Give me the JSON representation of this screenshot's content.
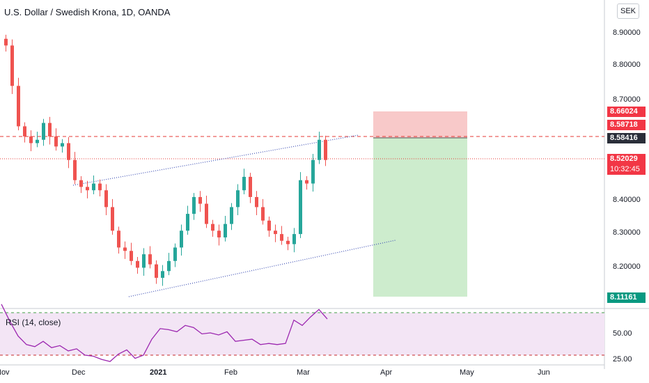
{
  "title": "U.S. Dollar / Swedish Krona, 1D, OANDA",
  "currency": "SEK",
  "price_axis": {
    "ticks": [
      "8.90000",
      "8.80000",
      "8.70000",
      "8.40000",
      "8.30000",
      "8.20000"
    ],
    "values": [
      8.9,
      8.8,
      8.7,
      8.4,
      8.3,
      8.2
    ]
  },
  "price_tags": {
    "tp_label": "8.66024",
    "entry_label": "8.58718",
    "dark_label": "8.58416",
    "last_price": "8.52029",
    "countdown": "10:32:45",
    "stop_label": "8.11161"
  },
  "levels": {
    "stop": 8.66024,
    "entry": 8.58718,
    "target": 8.11161,
    "last": 8.52029
  },
  "time_axis": [
    "Nov",
    "Dec",
    "2021",
    "Feb",
    "Mar",
    "Apr",
    "May",
    "Jun"
  ],
  "rsi": {
    "label": "RSI (14, close)",
    "ticks": [
      "50.00",
      "25.00"
    ],
    "upper": 70,
    "lower": 30,
    "values": [
      78,
      62,
      48,
      40,
      38,
      43,
      37,
      39,
      34,
      36,
      30,
      29,
      26,
      24,
      31,
      35,
      27,
      30,
      45,
      55,
      54,
      52,
      58,
      56,
      50,
      51,
      49,
      52,
      43,
      44,
      45,
      40,
      41,
      40,
      41,
      63,
      58,
      66,
      73,
      64
    ]
  },
  "chart_data": {
    "type": "candlestick",
    "title": "U.S. Dollar / Swedish Krona, 1D, OANDA",
    "x_axis_labels": [
      "Nov",
      "Dec",
      "2021",
      "Feb",
      "Mar",
      "Apr",
      "May",
      "Jun"
    ],
    "y_unit": "SEK",
    "ylim": [
      8.1,
      8.95
    ],
    "closes": [
      8.86,
      8.74,
      8.62,
      8.59,
      8.57,
      8.58,
      8.63,
      8.59,
      8.56,
      8.57,
      8.52,
      8.46,
      8.44,
      8.43,
      8.45,
      8.43,
      8.38,
      8.31,
      8.26,
      8.25,
      8.22,
      8.2,
      8.24,
      8.21,
      8.17,
      8.19,
      8.22,
      8.26,
      8.31,
      8.36,
      8.41,
      8.39,
      8.33,
      8.31,
      8.29,
      8.33,
      8.38,
      8.43,
      8.47,
      8.41,
      8.38,
      8.34,
      8.31,
      8.3,
      8.28,
      8.27,
      8.3,
      8.46,
      8.45,
      8.52,
      8.58,
      8.52
    ],
    "series": [
      {
        "name": "RSI (14, close)",
        "values": [
          78,
          62,
          48,
          40,
          38,
          43,
          37,
          39,
          34,
          36,
          30,
          29,
          26,
          24,
          31,
          35,
          27,
          30,
          45,
          55,
          54,
          52,
          58,
          56,
          50,
          51,
          49,
          52,
          43,
          44,
          45,
          40,
          41,
          40,
          41,
          63,
          58,
          66,
          73,
          64
        ]
      }
    ],
    "position": {
      "stop": 8.66024,
      "entry": 8.58718,
      "target": 8.11161
    },
    "grid": false
  },
  "colors": {
    "up": "#26a69a",
    "down": "#ef5350",
    "accent": "#2962ff",
    "stop_zone": "#f8c9c9",
    "target_zone": "#cdeccd",
    "rsi_line": "#9c27b0",
    "rsi_band": "#f3e5f5",
    "tag_green": "#089981"
  }
}
